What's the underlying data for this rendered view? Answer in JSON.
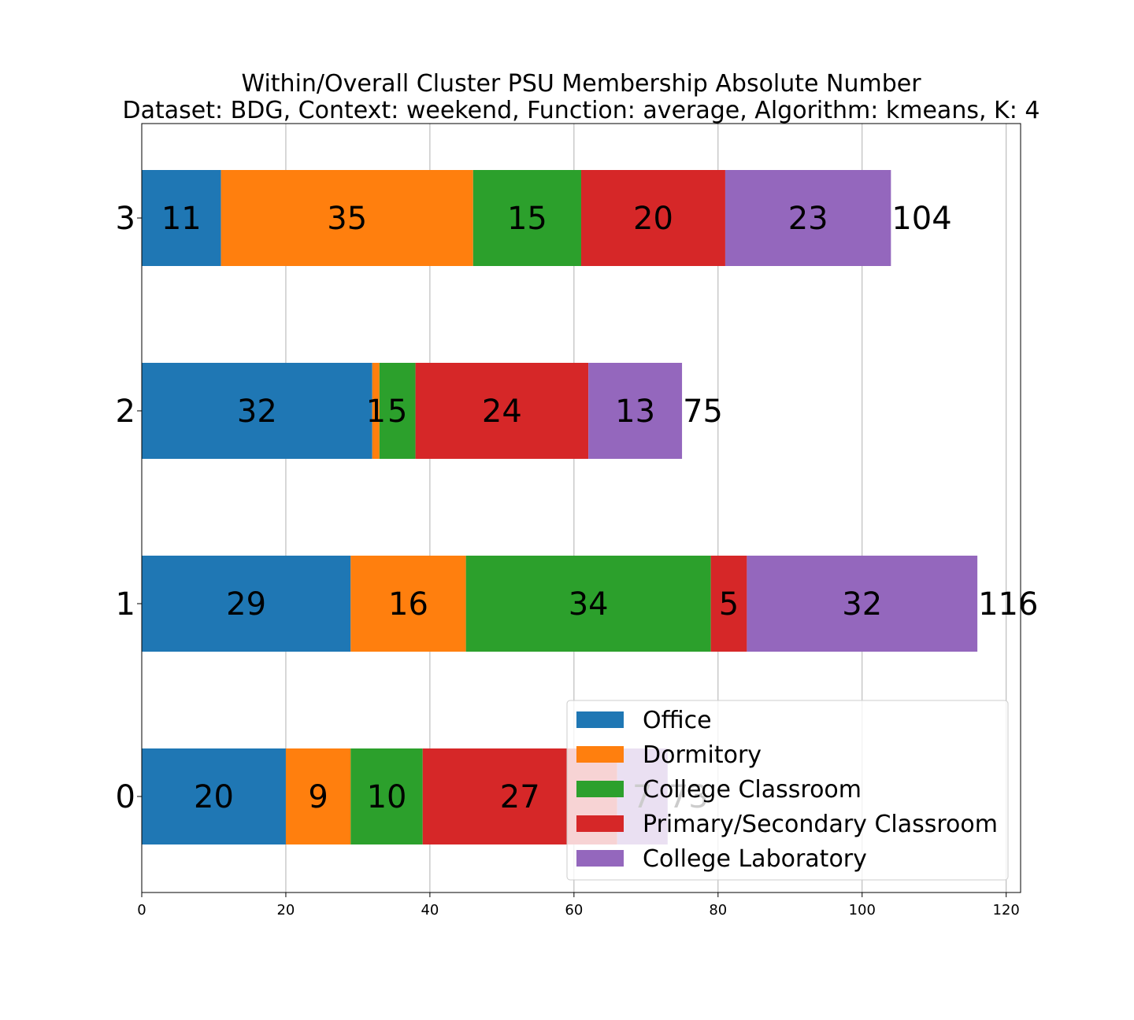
{
  "chart_data": {
    "type": "bar",
    "orientation": "horizontal",
    "stacked": true,
    "title_line1": "Within/Overall Cluster PSU Membership Absolute Number",
    "title_line2": "Dataset: BDG, Context: weekend, Function: average, Algorithm: kmeans, K: 4",
    "categories": [
      "0",
      "1",
      "2",
      "3"
    ],
    "series": [
      {
        "name": "Office",
        "color": "#1f77b4",
        "values": [
          20,
          29,
          32,
          11
        ]
      },
      {
        "name": "Dormitory",
        "color": "#ff7f0e",
        "values": [
          9,
          16,
          1,
          35
        ]
      },
      {
        "name": "College Classroom",
        "color": "#2ca02c",
        "values": [
          10,
          34,
          5,
          15
        ]
      },
      {
        "name": "Primary/Secondary Classroom",
        "color": "#d62728",
        "values": [
          27,
          5,
          24,
          20
        ]
      },
      {
        "name": "College Laboratory",
        "color": "#9467bd",
        "values": [
          7,
          32,
          13,
          23
        ]
      }
    ],
    "totals": [
      73,
      116,
      75,
      104
    ],
    "xlim": [
      0,
      122
    ],
    "xticks": [
      0,
      20,
      40,
      60,
      80,
      100,
      120
    ],
    "grid": "x",
    "legend_position": "lower-right"
  }
}
